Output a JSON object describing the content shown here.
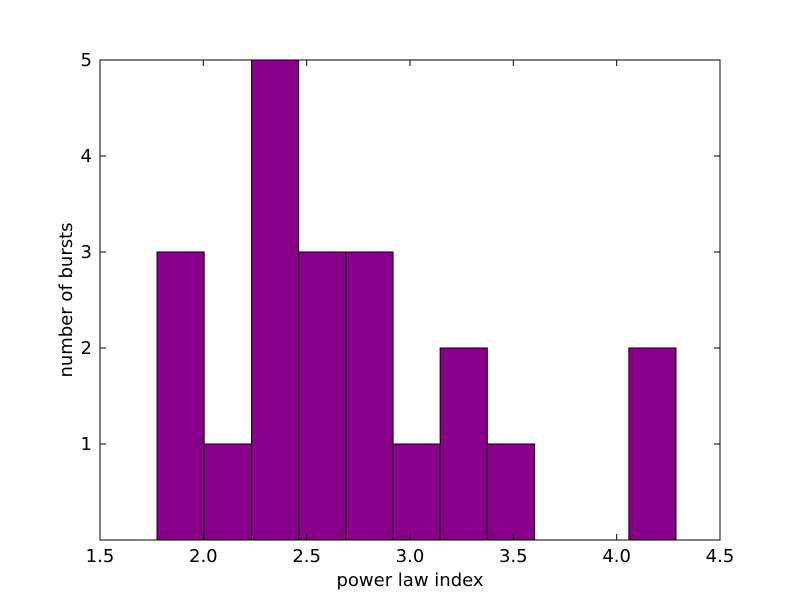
{
  "chart_data": {
    "type": "histogram",
    "xlabel": "power law index",
    "ylabel": "number of bursts",
    "bins": [
      1.776,
      2.004,
      2.233,
      2.461,
      2.689,
      2.918,
      3.146,
      3.374,
      3.603,
      3.831,
      4.059,
      4.287
    ],
    "values": [
      3,
      1,
      5,
      3,
      3,
      1,
      2,
      1,
      0,
      0,
      2
    ],
    "color": "#8b008b",
    "xlim": [
      1.5,
      4.5
    ],
    "xticks": [
      1.5,
      {
        "value": 2,
        "label": "2.0"
      },
      2.5,
      {
        "value": 3,
        "label": "3.0"
      },
      3.5,
      {
        "value": 4,
        "label": "4.0"
      },
      4.5
    ],
    "ylim": [
      0,
      5
    ],
    "yticks": [
      1,
      2,
      3,
      4,
      5
    ]
  }
}
